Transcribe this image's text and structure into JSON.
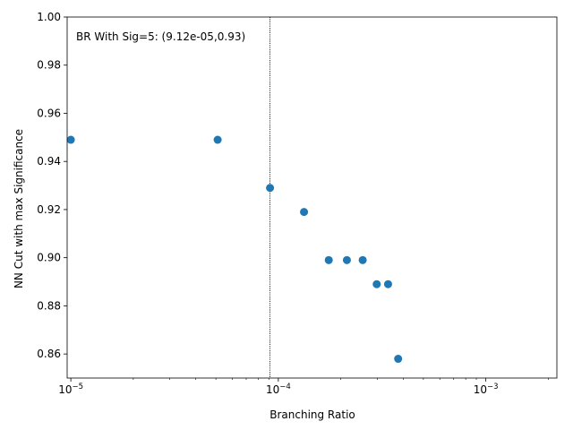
{
  "chart_data": {
    "type": "scatter",
    "xlabel": "Branching Ratio",
    "ylabel": "NN Cut with max Significance",
    "xscale": "log",
    "xlim": [
      9.6e-06,
      0.0022
    ],
    "ylim": [
      0.85,
      1.0
    ],
    "grid": false,
    "marker_color": "#1f77b4",
    "points": [
      {
        "x": 1e-05,
        "y": 0.949
      },
      {
        "x": 5.1e-05,
        "y": 0.949
      },
      {
        "x": 9.12e-05,
        "y": 0.929
      },
      {
        "x": 0.000133,
        "y": 0.919
      },
      {
        "x": 0.000175,
        "y": 0.899
      },
      {
        "x": 0.000214,
        "y": 0.899
      },
      {
        "x": 0.000255,
        "y": 0.899
      },
      {
        "x": 0.000298,
        "y": 0.889
      },
      {
        "x": 0.000338,
        "y": 0.889
      },
      {
        "x": 0.000378,
        "y": 0.858
      }
    ],
    "vline": {
      "x": 9.12e-05,
      "style": "dotted"
    },
    "annotation": "BR With Sig=5: (9.12e-05,0.93)",
    "y_ticks": [
      {
        "v": 0.86,
        "label": "0.86"
      },
      {
        "v": 0.88,
        "label": "0.88"
      },
      {
        "v": 0.9,
        "label": "0.90"
      },
      {
        "v": 0.92,
        "label": "0.92"
      },
      {
        "v": 0.94,
        "label": "0.94"
      },
      {
        "v": 0.96,
        "label": "0.96"
      },
      {
        "v": 0.98,
        "label": "0.98"
      },
      {
        "v": 1.0,
        "label": "1.00"
      }
    ],
    "x_ticks": [
      {
        "v": 1e-05,
        "base": "10",
        "exp": "−5"
      },
      {
        "v": 0.0001,
        "base": "10",
        "exp": "−4"
      },
      {
        "v": 0.001,
        "base": "10",
        "exp": "−3"
      }
    ]
  }
}
